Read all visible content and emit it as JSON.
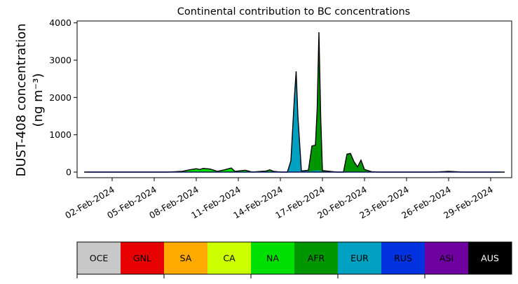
{
  "chart_data": {
    "type": "area",
    "title": "Continental contribution to BC concentrations",
    "ylabel_line1": "DUST-408 concentration",
    "ylabel_line2": "(ng m⁻³)",
    "xlabel": "",
    "ylim": [
      -150,
      4050
    ],
    "xlim_days": [
      -1.5,
      29.5
    ],
    "y_ticks": [
      {
        "value": 0,
        "label": "0"
      },
      {
        "value": 1000,
        "label": "1000"
      },
      {
        "value": 2000,
        "label": "2000"
      },
      {
        "value": 3000,
        "label": "3000"
      },
      {
        "value": 4000,
        "label": "4000"
      }
    ],
    "x_ticks": [
      {
        "date": "2024-02-02",
        "label": "02-Feb-2024"
      },
      {
        "date": "2024-02-05",
        "label": "05-Feb-2024"
      },
      {
        "date": "2024-02-08",
        "label": "08-Feb-2024"
      },
      {
        "date": "2024-02-11",
        "label": "11-Feb-2024"
      },
      {
        "date": "2024-02-14",
        "label": "14-Feb-2024"
      },
      {
        "date": "2024-02-17",
        "label": "17-Feb-2024"
      },
      {
        "date": "2024-02-20",
        "label": "20-Feb-2024"
      },
      {
        "date": "2024-02-23",
        "label": "23-Feb-2024"
      },
      {
        "date": "2024-02-26",
        "label": "26-Feb-2024"
      },
      {
        "date": "2024-02-29",
        "label": "29-Feb-2024"
      }
    ],
    "grid": false,
    "legend_placement": "bottom",
    "legend": [
      {
        "label": "OCE",
        "color": "#c8c8c8",
        "text_color": "#000000"
      },
      {
        "label": "GNL",
        "color": "#e60000",
        "text_color": "#000000"
      },
      {
        "label": "SA",
        "color": "#ffaa00",
        "text_color": "#000000"
      },
      {
        "label": "CA",
        "color": "#ccff00",
        "text_color": "#000000"
      },
      {
        "label": "NA",
        "color": "#00e000",
        "text_color": "#000000"
      },
      {
        "label": "AFR",
        "color": "#009600",
        "text_color": "#000000"
      },
      {
        "label": "EUR",
        "color": "#00a0c0",
        "text_color": "#000000"
      },
      {
        "label": "RUS",
        "color": "#0032e0",
        "text_color": "#000000"
      },
      {
        "label": "ASI",
        "color": "#6e00a0",
        "text_color": "#000000"
      },
      {
        "label": "AUS",
        "color": "#000000",
        "text_color": "#ffffff"
      }
    ],
    "series": [
      {
        "name": "NA",
        "points": [
          [
            "2024-01-31",
            0
          ],
          [
            "2024-02-03",
            0
          ],
          [
            "2024-02-04",
            0
          ],
          [
            "2024-02-05",
            0
          ],
          [
            "2024-02-06",
            0
          ],
          [
            "2024-02-07",
            20
          ],
          [
            "2024-02-07T12:00",
            60
          ],
          [
            "2024-02-08",
            90
          ],
          [
            "2024-02-08T06:00",
            70
          ],
          [
            "2024-02-08T12:00",
            100
          ],
          [
            "2024-02-09",
            80
          ],
          [
            "2024-02-09T12:00",
            20
          ],
          [
            "2024-02-10",
            60
          ],
          [
            "2024-02-10T12:00",
            110
          ],
          [
            "2024-02-10T18:00",
            20
          ],
          [
            "2024-02-11",
            30
          ],
          [
            "2024-02-11T12:00",
            50
          ],
          [
            "2024-02-12",
            0
          ],
          [
            "2024-02-13",
            30
          ],
          [
            "2024-02-13T06:00",
            60
          ],
          [
            "2024-02-13T12:00",
            20
          ],
          [
            "2024-02-14",
            0
          ],
          [
            "2024-02-15",
            0
          ],
          [
            "2024-02-16",
            0
          ],
          [
            "2024-02-17",
            0
          ],
          [
            "2024-02-18",
            0
          ],
          [
            "2024-02-19",
            0
          ],
          [
            "2024-02-20",
            0
          ],
          [
            "2024-02-21",
            0
          ],
          [
            "2024-02-22",
            0
          ],
          [
            "2024-02-23",
            0
          ],
          [
            "2024-02-24",
            0
          ],
          [
            "2024-02-25",
            0
          ],
          [
            "2024-02-26",
            0
          ],
          [
            "2024-02-27",
            0
          ],
          [
            "2024-02-28",
            0
          ],
          [
            "2024-02-29",
            0
          ],
          [
            "2024-03-01",
            0
          ]
        ]
      },
      {
        "name": "AFR",
        "points": [
          [
            "2024-01-31",
            0
          ],
          [
            "2024-02-13",
            0
          ],
          [
            "2024-02-14",
            0
          ],
          [
            "2024-02-15",
            0
          ],
          [
            "2024-02-15T06:00",
            10
          ],
          [
            "2024-02-15T12:00",
            20
          ],
          [
            "2024-02-16",
            50
          ],
          [
            "2024-02-16T06:00",
            700
          ],
          [
            "2024-02-16T12:00",
            720
          ],
          [
            "2024-02-16T15:00",
            1700
          ],
          [
            "2024-02-16T18:00",
            3750
          ],
          [
            "2024-02-16T21:00",
            1500
          ],
          [
            "2024-02-17",
            40
          ],
          [
            "2024-02-18",
            0
          ],
          [
            "2024-02-18T12:00",
            0
          ],
          [
            "2024-02-18T18:00",
            480
          ],
          [
            "2024-02-19",
            500
          ],
          [
            "2024-02-19T06:00",
            280
          ],
          [
            "2024-02-19T12:00",
            140
          ],
          [
            "2024-02-19T18:00",
            320
          ],
          [
            "2024-02-20",
            70
          ],
          [
            "2024-02-20T12:00",
            10
          ],
          [
            "2024-02-21",
            0
          ],
          [
            "2024-02-22",
            0
          ],
          [
            "2024-02-23",
            0
          ],
          [
            "2024-02-24",
            0
          ],
          [
            "2024-02-25",
            0
          ],
          [
            "2024-02-26",
            20
          ],
          [
            "2024-02-27",
            0
          ],
          [
            "2024-02-28",
            0
          ],
          [
            "2024-02-29",
            0
          ],
          [
            "2024-03-01",
            0
          ]
        ]
      },
      {
        "name": "EUR",
        "points": [
          [
            "2024-01-31",
            0
          ],
          [
            "2024-02-14",
            0
          ],
          [
            "2024-02-14T12:00",
            0
          ],
          [
            "2024-02-14T18:00",
            300
          ],
          [
            "2024-02-15",
            2000
          ],
          [
            "2024-02-15T03:00",
            2700
          ],
          [
            "2024-02-15T06:00",
            1500
          ],
          [
            "2024-02-15T12:00",
            30
          ],
          [
            "2024-02-16",
            20
          ],
          [
            "2024-02-16T18:00",
            50
          ],
          [
            "2024-02-17",
            10
          ],
          [
            "2024-02-18",
            0
          ],
          [
            "2024-03-01",
            0
          ]
        ]
      }
    ]
  }
}
